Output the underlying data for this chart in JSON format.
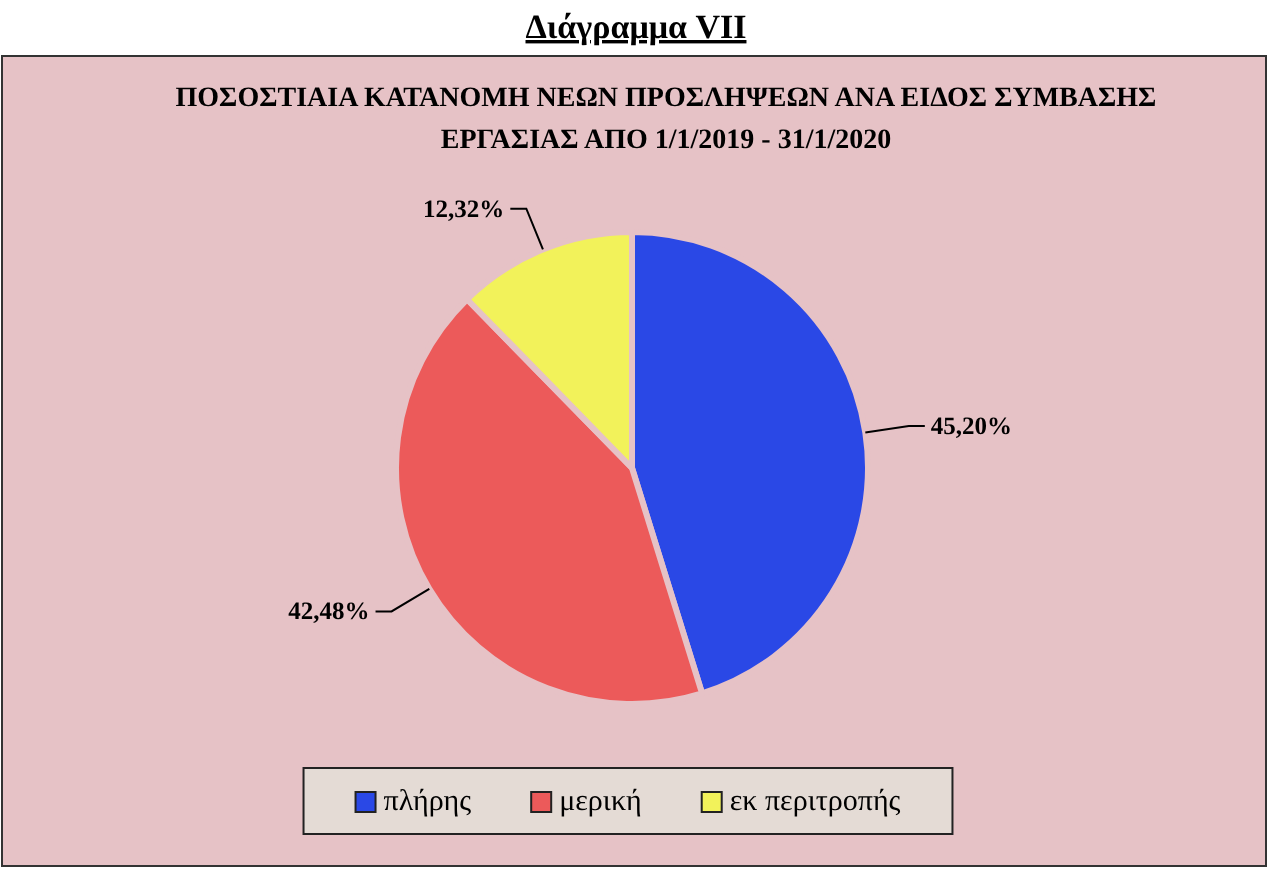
{
  "chart_data": {
    "type": "pie",
    "title": "Διάγραμμα VII",
    "subtitle": "ΠΟΣΟΣΤΙΑΙΑ ΚΑΤΑΝΟΜΗ ΝΕΩΝ ΠΡΟΣΛΗΨΕΩΝ ΑΝΑ ΕΙΔΟΣ ΣΥΜΒΑΣΗΣ ΕΡΓΑΣΙΑΣ ΑΠΟ 1/1/2019 - 31/1/2020",
    "categories": [
      "πλήρης",
      "μερική",
      "εκ περιτροπής"
    ],
    "values": [
      45.2,
      42.48,
      12.32
    ],
    "colors": [
      "#2a48e6",
      "#ec5a5a",
      "#f2f25a"
    ],
    "value_labels": [
      "45,20%",
      "42,48%",
      "12,32%"
    ],
    "legend": "bottom"
  }
}
